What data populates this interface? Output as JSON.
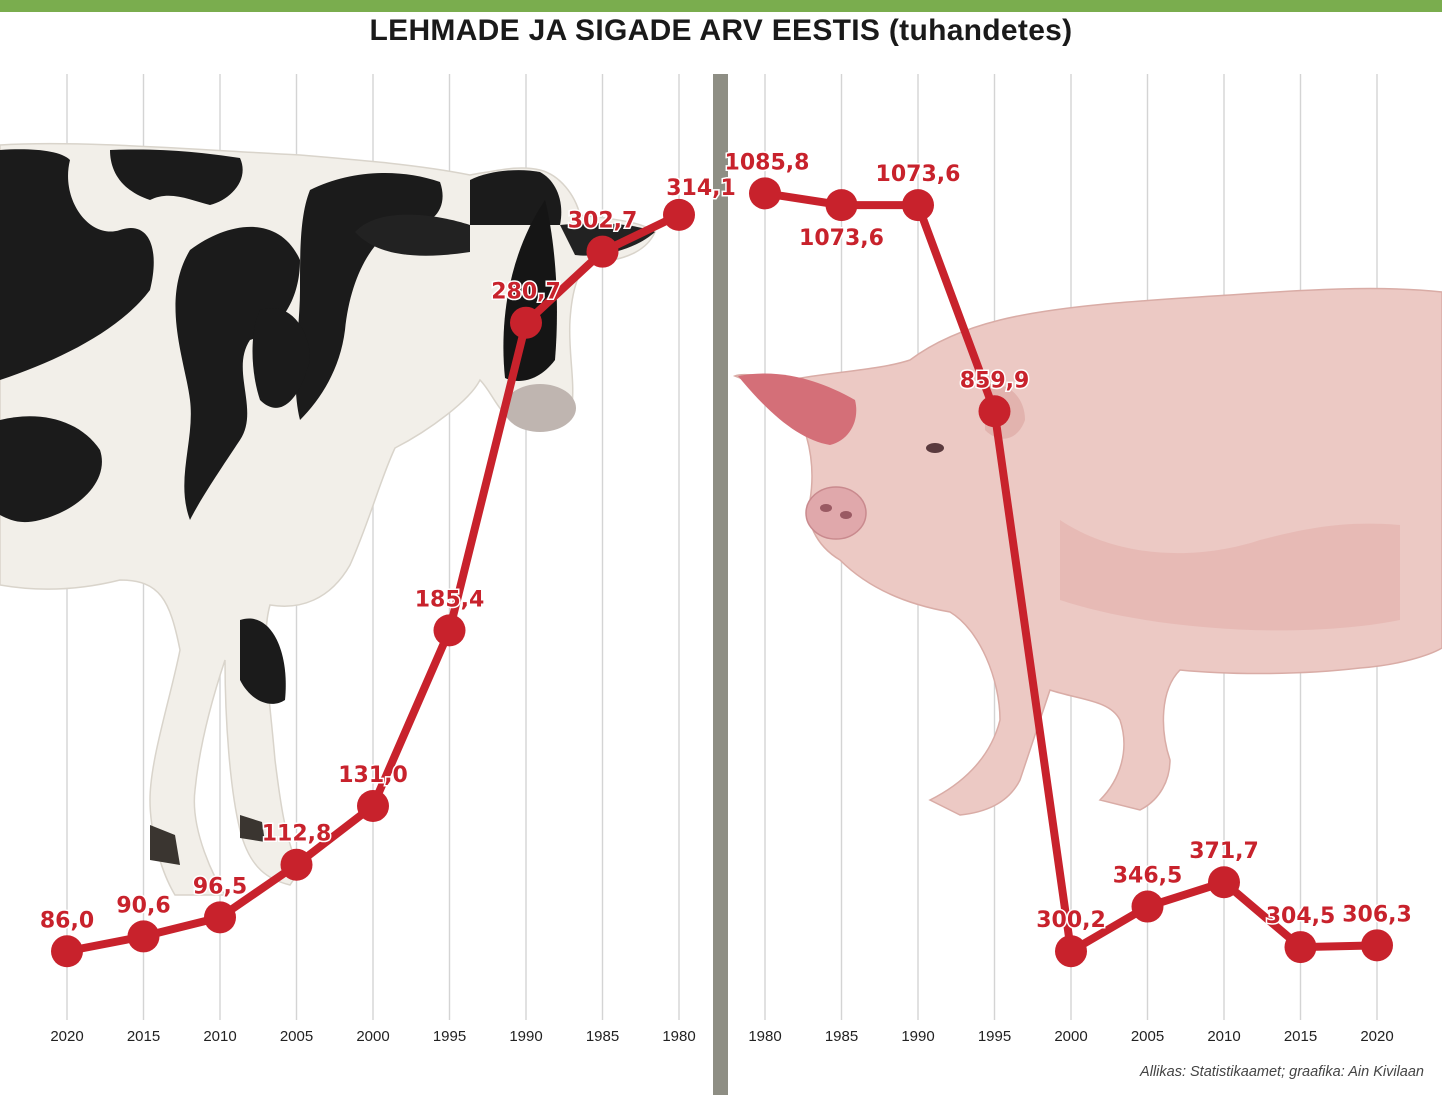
{
  "title": "LEHMADE JA SIGADE ARV EESTIS (tuhandetes)",
  "source": "Allikas: Statistikaamet; graafika: Ain Kivilaan",
  "colors": {
    "accent_bar": "#7aad4e",
    "line": "#c8222c",
    "divider": "#8e8e84",
    "grid": "#d4d4d4"
  },
  "chart_data": [
    {
      "type": "line",
      "title": "",
      "x_direction": "descending",
      "x": [
        "2020",
        "2015",
        "2010",
        "2005",
        "2000",
        "1995",
        "1990",
        "1985",
        "1980"
      ],
      "series": [
        {
          "values": [
            86.0,
            90.6,
            96.5,
            112.8,
            131.0,
            185.4,
            280.7,
            302.7,
            314.1
          ],
          "labels": [
            "86,0",
            "90,6",
            "96,5",
            "112,8",
            "131,0",
            "185,4",
            "280,7",
            "302,7",
            "314,1"
          ]
        }
      ],
      "ylim": [
        74,
        328
      ],
      "grid": true,
      "background_image": "cow"
    },
    {
      "type": "line",
      "title": "",
      "x_direction": "ascending",
      "x": [
        "1980",
        "1985",
        "1990",
        "1995",
        "2000",
        "2005",
        "2010",
        "2015",
        "2020"
      ],
      "series": [
        {
          "values": [
            1085.8,
            1073.6,
            1073.6,
            859.9,
            300.2,
            346.5,
            371.7,
            304.5,
            306.3
          ],
          "labels": [
            "1085,8",
            "1073,6",
            "1073,6",
            "859,9",
            "300,2",
            "346,5",
            "371,7",
            "304,5",
            "306,3"
          ]
        }
      ],
      "ylim": [
        260,
        1110
      ],
      "grid": true,
      "background_image": "pig"
    }
  ]
}
